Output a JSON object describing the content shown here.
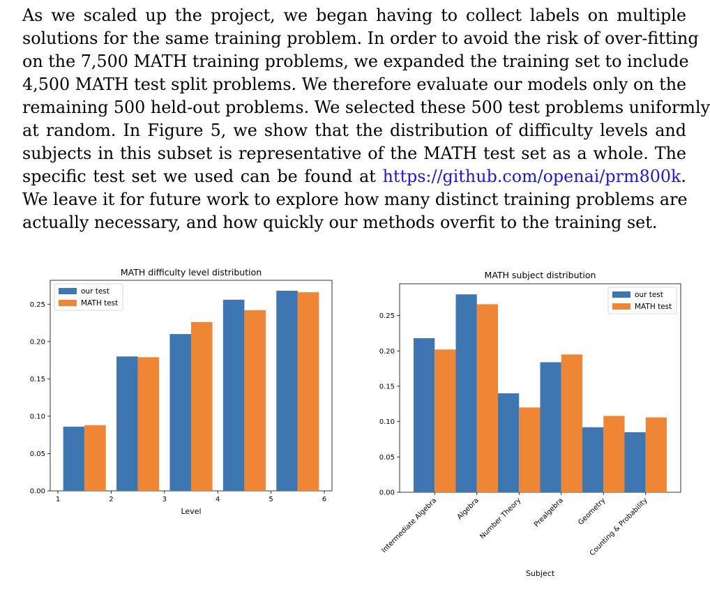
{
  "paragraph": {
    "lines": [
      "As we scaled up the project, we began having to collect labels on multiple",
      "solutions for the same training problem. In order to avoid the risk of over-fitting",
      "on the 7,500 MATH training problems, we expanded the training set to include",
      "4,500 MATH test split problems. We therefore evaluate our models only on the",
      "remaining 500 held-out problems. We selected these 500 test problems uniformly",
      "at random. In Figure 5, we show that the distribution of difficulty levels and",
      "subjects in this subset is representative of the MATH test set as a whole. The",
      "We leave it for future work to explore how many distinct training problems are",
      "actually necessary, and how quickly our methods overfit to the training set."
    ],
    "link_line_prefix": "specific test set we used can be found at",
    "link_text": "https://github.com/openai/prm800k",
    "link_line_suffix": "."
  },
  "colors": {
    "series_a": "#3d76b0",
    "series_b": "#ef8636"
  },
  "chart_data": [
    {
      "type": "bar",
      "title": "MATH difficulty level distribution",
      "xlabel": "Level",
      "ylabel": "",
      "categories": [
        "1",
        "2",
        "3",
        "4",
        "5"
      ],
      "series": [
        {
          "name": "our test",
          "values": [
            0.086,
            0.18,
            0.21,
            0.256,
            0.268
          ]
        },
        {
          "name": "MATH test",
          "values": [
            0.088,
            0.179,
            0.226,
            0.242,
            0.266
          ]
        }
      ],
      "xticks": [
        "1",
        "2",
        "3",
        "4",
        "5",
        "6"
      ],
      "yticks": [
        "0.00",
        "0.05",
        "0.10",
        "0.15",
        "0.20",
        "0.25"
      ],
      "ylim": [
        0,
        0.282
      ],
      "legend": "top-left",
      "grid": false
    },
    {
      "type": "bar",
      "title": "MATH subject distribution",
      "xlabel": "Subject",
      "ylabel": "",
      "categories": [
        "Intermediate Algebra",
        "Algebra",
        "Number Theory",
        "Prealgebra",
        "Geometry",
        "Counting & Probability"
      ],
      "series": [
        {
          "name": "our test",
          "values": [
            0.218,
            0.28,
            0.14,
            0.184,
            0.092,
            0.085
          ]
        },
        {
          "name": "MATH test",
          "values": [
            0.202,
            0.266,
            0.12,
            0.195,
            0.108,
            0.106
          ]
        }
      ],
      "yticks": [
        "0.00",
        "0.05",
        "0.10",
        "0.15",
        "0.20",
        "0.25"
      ],
      "ylim": [
        0,
        0.295
      ],
      "legend": "top-right",
      "grid": false
    }
  ]
}
